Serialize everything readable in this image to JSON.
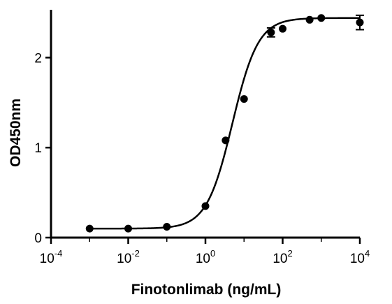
{
  "chart_data": {
    "type": "scatter",
    "title": "",
    "xlabel": "Finotonlimab (ng/mL)",
    "ylabel": "OD450nm",
    "xscale": "log",
    "xlim": [
      0.0001,
      10000
    ],
    "ylim": [
      0,
      2.5
    ],
    "x_ticks": [
      {
        "base": "10",
        "exp": "-4"
      },
      {
        "base": "10",
        "exp": "-2"
      },
      {
        "base": "10",
        "exp": "0"
      },
      {
        "base": "10",
        "exp": "2"
      },
      {
        "base": "10",
        "exp": "4"
      }
    ],
    "y_ticks": [
      "0",
      "1",
      "2"
    ],
    "grid": false,
    "legend": "none",
    "series": [
      {
        "marker": "filled-circle",
        "color": "#000000",
        "points": [
          {
            "x": 0.001,
            "y": 0.1
          },
          {
            "x": 0.01,
            "y": 0.1
          },
          {
            "x": 0.1,
            "y": 0.12
          },
          {
            "x": 1,
            "y": 0.35
          },
          {
            "x": 3.33,
            "y": 1.08
          },
          {
            "x": 10,
            "y": 1.54
          },
          {
            "x": 50,
            "y": 2.28,
            "err": 0.05
          },
          {
            "x": 100,
            "y": 2.32
          },
          {
            "x": 500,
            "y": 2.42
          },
          {
            "x": 1000,
            "y": 2.44
          },
          {
            "x": 10000,
            "y": 2.39,
            "err": 0.08
          }
        ]
      }
    ],
    "fit_curve": {
      "bottom": 0.1,
      "top": 2.44,
      "ec50": 5.0,
      "hill": 1.3
    }
  }
}
